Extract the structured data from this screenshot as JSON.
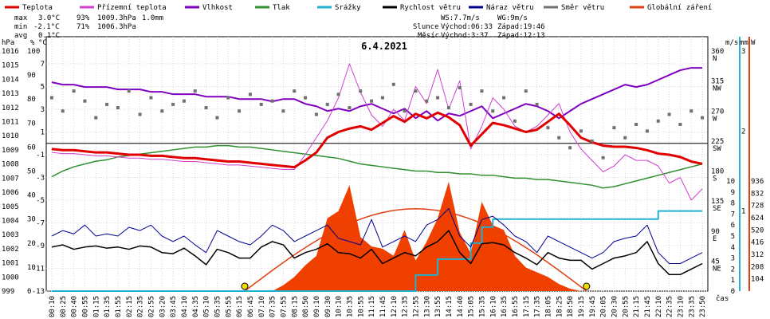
{
  "chart_data": {
    "type": "line",
    "title": "6.4.2021",
    "xlabel": "čas",
    "legend": [
      {
        "label": "Teplota",
        "color": "#e00000"
      },
      {
        "label": "Přízemní teplota",
        "color": "#d040d0"
      },
      {
        "label": "Vlhkost",
        "color": "#8000c0"
      },
      {
        "label": "Tlak",
        "color": "#309030"
      },
      {
        "label": "Srážky",
        "color": "#20b0d0"
      },
      {
        "label": "Rychlost větru",
        "color": "#000000"
      },
      {
        "label": "Náraz větru",
        "color": "#000090"
      },
      {
        "label": "Směr větru",
        "color": "#707070"
      },
      {
        "label": "Globální záření",
        "color": "#e04010"
      }
    ],
    "stats": {
      "max": {
        "label": "max",
        "temp": "3.0°C",
        "hum": "93%",
        "press": "1009.3hPa",
        "rain": "1.0mm"
      },
      "min": {
        "label": "min",
        "temp": "-2.1°C",
        "hum": "71%",
        "press": "1006.3hPa"
      },
      "avg": {
        "label": "avg",
        "temp": "0.1°C"
      }
    },
    "wind_info": {
      "ws": "WS:7.7m/s",
      "wg": "WG:9m/s"
    },
    "sun": {
      "label": "Slunce",
      "rise": "Východ:06:33",
      "set": "Západ:19:46"
    },
    "moon": {
      "label": "Měsíc",
      "rise": "Východ:3:37",
      "set": "Západ:12:13"
    },
    "axes": {
      "hpa": {
        "unit": "hPa",
        "ticks": [
          "1016",
          "1015",
          "1014",
          "1013",
          "1012",
          "1011",
          "1010",
          "1009",
          "1008",
          "1007",
          "1006",
          "1005",
          "1004",
          "1003",
          "1002",
          "1001",
          "1000",
          "999"
        ]
      },
      "pct": {
        "unit": "%",
        "ticks": [
          "100",
          "90",
          "80",
          "70",
          "60",
          "50",
          "40",
          "30",
          "20",
          "10",
          "0"
        ]
      },
      "degc": {
        "unit": "°C",
        "ticks": [
          "7",
          "5",
          "3",
          "1",
          "-1",
          "-3",
          "-5",
          "-7",
          "-9",
          "-11",
          "-13"
        ]
      },
      "ms": {
        "unit": "m/s",
        "ticks": [
          "10",
          "9",
          "8",
          "7",
          "6",
          "5",
          "4",
          "3",
          "2",
          "1",
          "0"
        ]
      },
      "dir": {
        "ticks": [
          "360",
          "315",
          "270",
          "225",
          "180",
          "135",
          "90",
          "45"
        ],
        "letters": [
          "N",
          "NW",
          "W",
          "SW",
          "S",
          "SE",
          "E",
          "NE"
        ]
      },
      "mm": {
        "unit": "mm",
        "ticks": [
          "3",
          "2",
          "1"
        ]
      },
      "w": {
        "unit": "W",
        "ticks": [
          "936",
          "832",
          "728",
          "624",
          "520",
          "416",
          "312",
          "208",
          "104"
        ]
      }
    },
    "x_ticks": [
      "00:10",
      "00:25",
      "00:40",
      "00:55",
      "01:15",
      "01:35",
      "01:55",
      "02:15",
      "02:35",
      "02:55",
      "03:20",
      "03:45",
      "04:10",
      "04:35",
      "05:10",
      "05:35",
      "05:55",
      "06:15",
      "06:45",
      "07:10",
      "07:35",
      "07:55",
      "08:15",
      "08:50",
      "09:10",
      "09:30",
      "10:10",
      "10:35",
      "10:55",
      "11:15",
      "11:45",
      "12:10",
      "12:35",
      "12:55",
      "13:30",
      "13:55",
      "14:15",
      "14:40",
      "15:05",
      "15:35",
      "16:10",
      "16:35",
      "16:55",
      "17:15",
      "17:35",
      "18:05",
      "18:25",
      "18:50",
      "19:15",
      "19:45",
      "20:05",
      "20:30",
      "20:55",
      "21:15",
      "21:45",
      "22:10",
      "22:35",
      "23:10",
      "23:35",
      "23:50"
    ],
    "series": {
      "temperature_c": [
        -0.5,
        -0.6,
        -0.6,
        -0.7,
        -0.8,
        -0.8,
        -0.9,
        -1.0,
        -1.0,
        -1.1,
        -1.1,
        -1.2,
        -1.3,
        -1.3,
        -1.4,
        -1.5,
        -1.6,
        -1.6,
        -1.7,
        -1.8,
        -1.9,
        -2.0,
        -2.1,
        -1.5,
        -0.8,
        0.5,
        1.0,
        1.3,
        1.5,
        1.2,
        1.8,
        2.4,
        1.9,
        2.6,
        2.2,
        2.7,
        2.3,
        1.6,
        -0.2,
        0.8,
        1.8,
        1.6,
        1.3,
        1.0,
        1.2,
        1.9,
        2.6,
        1.6,
        0.5,
        0.1,
        -0.2,
        -0.3,
        -0.3,
        -0.4,
        -0.6,
        -0.9,
        -1.0,
        -1.2,
        -1.6,
        -1.8
      ],
      "ground_temp_c": [
        -0.8,
        -0.9,
        -0.9,
        -1.0,
        -1.1,
        -1.1,
        -1.2,
        -1.3,
        -1.3,
        -1.4,
        -1.4,
        -1.5,
        -1.6,
        -1.6,
        -1.7,
        -1.8,
        -1.9,
        -1.9,
        -2.0,
        -2.1,
        -2.2,
        -2.3,
        -2.3,
        -1.0,
        0.5,
        2.0,
        4.0,
        7.0,
        4.5,
        2.5,
        1.5,
        3.0,
        2.0,
        5.0,
        3.5,
        6.5,
        3.0,
        5.5,
        -0.5,
        1.5,
        4.0,
        3.0,
        1.5,
        1.0,
        1.5,
        2.5,
        3.5,
        1.0,
        -0.5,
        -1.5,
        -2.5,
        -2.0,
        -1.0,
        -1.5,
        -1.5,
        -2.0,
        -3.5,
        -3.0,
        -5.0,
        -4.0
      ],
      "humidity_pct": [
        87,
        86,
        86,
        85,
        85,
        85,
        84,
        84,
        84,
        83,
        83,
        82,
        82,
        82,
        81,
        81,
        81,
        80,
        80,
        80,
        79,
        80,
        80,
        78,
        77,
        75,
        76,
        75,
        77,
        78,
        76,
        74,
        76,
        72,
        75,
        71,
        74,
        73,
        75,
        77,
        72,
        74,
        76,
        78,
        77,
        75,
        72,
        75,
        78,
        80,
        82,
        84,
        86,
        85,
        86,
        88,
        90,
        92,
        93,
        93
      ],
      "pressure_hpa": [
        1007.1,
        1007.5,
        1007.8,
        1008.0,
        1008.2,
        1008.3,
        1008.5,
        1008.6,
        1008.7,
        1008.8,
        1008.9,
        1009.0,
        1009.1,
        1009.2,
        1009.2,
        1009.3,
        1009.3,
        1009.2,
        1009.2,
        1009.1,
        1009.0,
        1008.9,
        1008.8,
        1008.7,
        1008.6,
        1008.5,
        1008.4,
        1008.2,
        1008.0,
        1007.9,
        1007.8,
        1007.7,
        1007.6,
        1007.5,
        1007.5,
        1007.4,
        1007.4,
        1007.3,
        1007.3,
        1007.2,
        1007.2,
        1007.1,
        1007.0,
        1007.0,
        1006.9,
        1006.9,
        1006.8,
        1006.7,
        1006.6,
        1006.5,
        1006.3,
        1006.4,
        1006.6,
        1006.8,
        1007.0,
        1007.2,
        1007.4,
        1007.6,
        1007.8,
        1008.0
      ],
      "rain_mm": [
        0,
        0,
        0,
        0,
        0,
        0,
        0,
        0,
        0,
        0,
        0,
        0,
        0,
        0,
        0,
        0,
        0,
        0,
        0,
        0,
        0,
        0,
        0,
        0,
        0,
        0,
        0,
        0,
        0,
        0,
        0,
        0,
        0,
        0.2,
        0.2,
        0.4,
        0.4,
        0.4,
        0.6,
        0.8,
        0.9,
        0.9,
        0.9,
        0.9,
        0.9,
        0.9,
        0.9,
        0.9,
        0.9,
        0.9,
        0.9,
        0.9,
        0.9,
        0.9,
        0.9,
        1.0,
        1.0,
        1.0,
        1.0,
        1.0
      ],
      "wind_speed_ms": [
        4.0,
        4.2,
        3.8,
        4.0,
        4.1,
        3.9,
        4.0,
        3.8,
        4.1,
        4.0,
        3.5,
        3.4,
        3.9,
        3.2,
        2.4,
        3.8,
        3.5,
        3.0,
        3.0,
        4.0,
        4.5,
        4.2,
        3.0,
        3.5,
        3.8,
        4.3,
        3.5,
        3.4,
        3.0,
        3.8,
        2.5,
        3.0,
        3.5,
        3.2,
        4.0,
        4.5,
        5.5,
        3.5,
        2.5,
        4.3,
        4.4,
        4.2,
        3.5,
        3.0,
        2.4,
        3.5,
        3.0,
        2.8,
        2.8,
        2.0,
        2.5,
        3.0,
        3.2,
        3.5,
        4.5,
        2.5,
        1.5,
        1.5,
        2.0,
        2.5
      ],
      "wind_gust_ms": [
        5.0,
        5.5,
        5.2,
        6.0,
        5.0,
        5.2,
        5.0,
        5.8,
        5.5,
        6.0,
        5.0,
        4.5,
        5.0,
        4.2,
        3.5,
        5.5,
        5.0,
        4.5,
        4.2,
        5.0,
        6.0,
        5.5,
        4.5,
        5.0,
        5.5,
        6.0,
        4.8,
        4.5,
        4.2,
        6.5,
        4.0,
        4.5,
        5.0,
        4.5,
        6.0,
        6.5,
        7.5,
        5.0,
        4.0,
        6.5,
        6.8,
        6.0,
        5.0,
        4.5,
        3.5,
        5.0,
        4.5,
        4.0,
        3.5,
        3.0,
        3.5,
        4.5,
        4.8,
        5.0,
        6.0,
        3.5,
        2.5,
        2.5,
        3.0,
        3.5
      ],
      "wind_dir_deg": [
        290,
        270,
        300,
        285,
        260,
        280,
        275,
        300,
        265,
        290,
        270,
        280,
        285,
        300,
        275,
        260,
        290,
        270,
        295,
        280,
        285,
        270,
        300,
        290,
        265,
        280,
        295,
        275,
        300,
        285,
        290,
        310,
        270,
        300,
        285,
        290,
        275,
        305,
        280,
        300,
        270,
        290,
        255,
        300,
        280,
        245,
        230,
        215,
        240,
        225,
        200,
        245,
        230,
        250,
        240,
        255,
        265,
        250,
        270,
        260
      ],
      "global_radiation_wm2": [
        0,
        0,
        0,
        0,
        0,
        0,
        0,
        0,
        0,
        0,
        0,
        0,
        0,
        0,
        0,
        0,
        0,
        0,
        0,
        0,
        0,
        50,
        120,
        220,
        300,
        620,
        680,
        900,
        460,
        380,
        360,
        300,
        520,
        260,
        420,
        620,
        930,
        500,
        320,
        760,
        560,
        520,
        300,
        200,
        160,
        120,
        60,
        20,
        0,
        0,
        0,
        0,
        0,
        0,
        0,
        0,
        0,
        0,
        0,
        0
      ]
    }
  }
}
